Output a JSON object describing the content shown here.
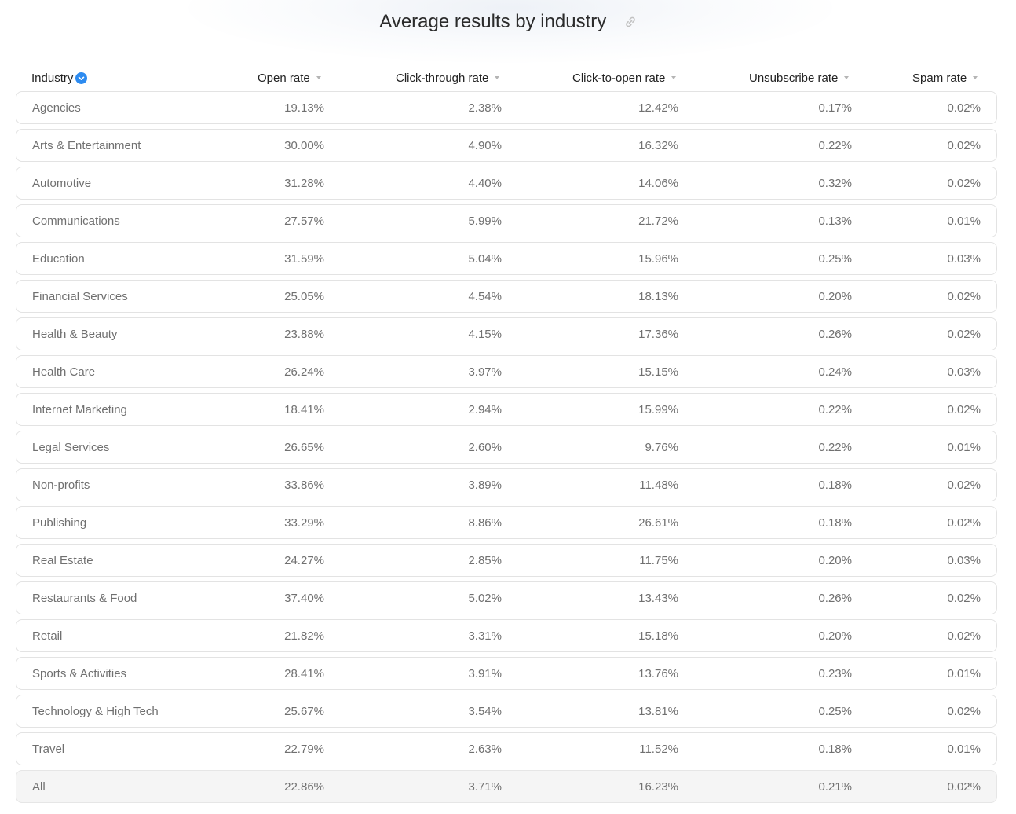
{
  "title": "Average results by industry",
  "icons": {
    "link": "link-icon",
    "sort_active": "chevron-down-icon",
    "sort": "caret-down-icon"
  },
  "colors": {
    "accent": "#2d8bf0",
    "row_border": "#e3e3e3",
    "total_bg": "#f5f5f5"
  },
  "columns": [
    "Industry",
    "Open rate",
    "Click-through rate",
    "Click-to-open rate",
    "Unsubscribe rate",
    "Spam rate"
  ],
  "rows": [
    [
      "Agencies",
      "19.13%",
      "2.38%",
      "12.42%",
      "0.17%",
      "0.02%"
    ],
    [
      "Arts & Entertainment",
      "30.00%",
      "4.90%",
      "16.32%",
      "0.22%",
      "0.02%"
    ],
    [
      "Automotive",
      "31.28%",
      "4.40%",
      "14.06%",
      "0.32%",
      "0.02%"
    ],
    [
      "Communications",
      "27.57%",
      "5.99%",
      "21.72%",
      "0.13%",
      "0.01%"
    ],
    [
      "Education",
      "31.59%",
      "5.04%",
      "15.96%",
      "0.25%",
      "0.03%"
    ],
    [
      "Financial Services",
      "25.05%",
      "4.54%",
      "18.13%",
      "0.20%",
      "0.02%"
    ],
    [
      "Health & Beauty",
      "23.88%",
      "4.15%",
      "17.36%",
      "0.26%",
      "0.02%"
    ],
    [
      "Health Care",
      "26.24%",
      "3.97%",
      "15.15%",
      "0.24%",
      "0.03%"
    ],
    [
      "Internet Marketing",
      "18.41%",
      "2.94%",
      "15.99%",
      "0.22%",
      "0.02%"
    ],
    [
      "Legal Services",
      "26.65%",
      "2.60%",
      "9.76%",
      "0.22%",
      "0.01%"
    ],
    [
      "Non-profits",
      "33.86%",
      "3.89%",
      "11.48%",
      "0.18%",
      "0.02%"
    ],
    [
      "Publishing",
      "33.29%",
      "8.86%",
      "26.61%",
      "0.18%",
      "0.02%"
    ],
    [
      "Real Estate",
      "24.27%",
      "2.85%",
      "11.75%",
      "0.20%",
      "0.03%"
    ],
    [
      "Restaurants & Food",
      "37.40%",
      "5.02%",
      "13.43%",
      "0.26%",
      "0.02%"
    ],
    [
      "Retail",
      "21.82%",
      "3.31%",
      "15.18%",
      "0.20%",
      "0.02%"
    ],
    [
      "Sports & Activities",
      "28.41%",
      "3.91%",
      "13.76%",
      "0.23%",
      "0.01%"
    ],
    [
      "Technology & High Tech",
      "25.67%",
      "3.54%",
      "13.81%",
      "0.25%",
      "0.02%"
    ],
    [
      "Travel",
      "22.79%",
      "2.63%",
      "11.52%",
      "0.18%",
      "0.01%"
    ],
    [
      "All",
      "22.86%",
      "3.71%",
      "16.23%",
      "0.21%",
      "0.02%"
    ]
  ]
}
